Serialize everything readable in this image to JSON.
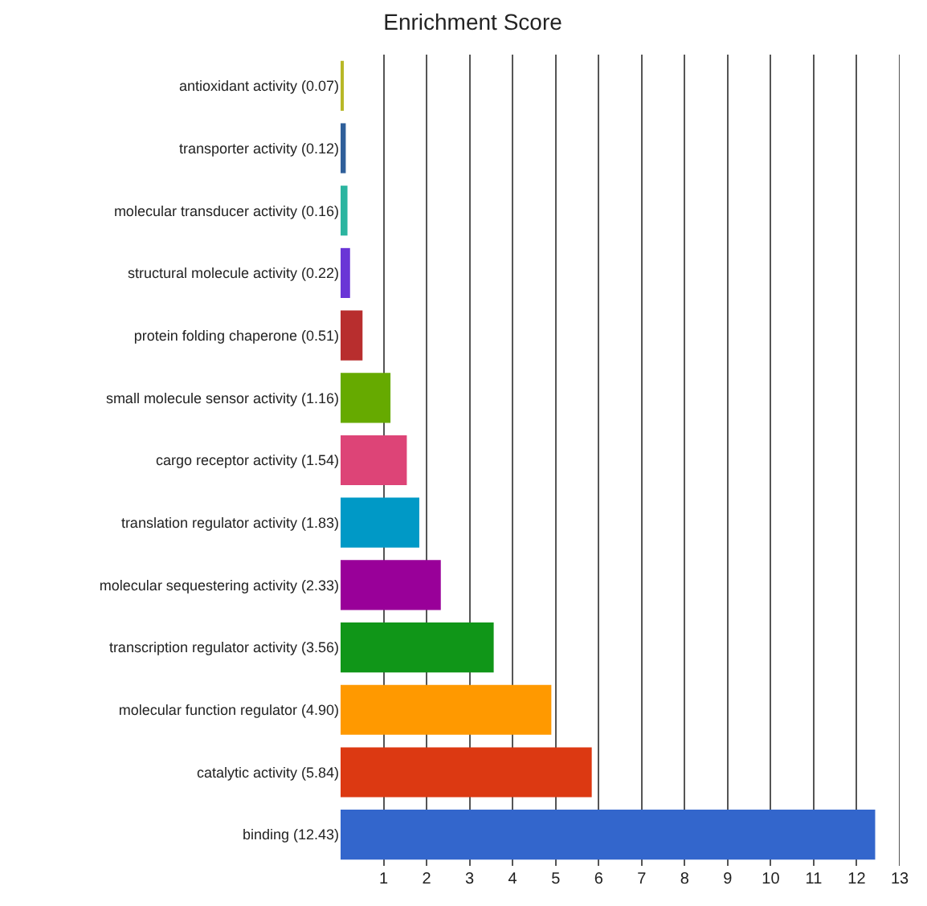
{
  "chart_data": {
    "type": "bar",
    "orientation": "horizontal",
    "title": "Enrichment Score",
    "categories": [
      "antioxidant activity (0.07)",
      "transporter activity (0.12)",
      "molecular transducer activity (0.16)",
      "structural molecule activity (0.22)",
      "protein folding chaperone (0.51)",
      "small molecule sensor activity (1.16)",
      "cargo receptor activity (1.54)",
      "translation regulator activity (1.83)",
      "molecular sequestering activity (2.33)",
      "transcription regulator activity (3.56)",
      "molecular function regulator (4.90)",
      "catalytic activity (5.84)",
      "binding (12.43)"
    ],
    "values": [
      0.07,
      0.12,
      0.16,
      0.22,
      0.51,
      1.16,
      1.54,
      1.83,
      2.33,
      3.56,
      4.9,
      5.84,
      12.43
    ],
    "colors": [
      "#b8b827",
      "#2f5f9a",
      "#2bb5a0",
      "#6a35d6",
      "#b82e2e",
      "#66aa00",
      "#dd4477",
      "#0099c6",
      "#990099",
      "#109618",
      "#ff9900",
      "#dc3912",
      "#3366cc"
    ],
    "xlim": [
      0,
      13
    ],
    "xticks": [
      1,
      2,
      3,
      4,
      5,
      6,
      7,
      8,
      9,
      10,
      11,
      12,
      13
    ],
    "grid": "x"
  }
}
